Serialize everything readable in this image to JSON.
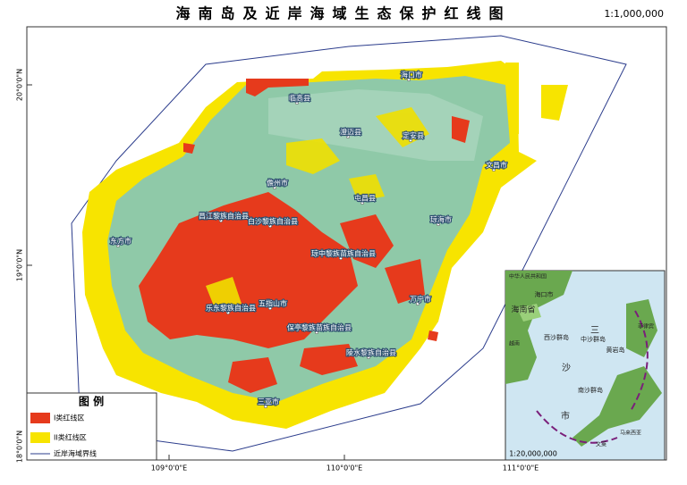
{
  "header": {
    "title": "海南岛及近岸海域生态保护红线图",
    "scale": "1:1,000,000"
  },
  "graticule": {
    "lat": [
      "20°0'0\"N",
      "19°0'0\"N",
      "18°0'0\"N"
    ],
    "lon": [
      "109°0'0\"E",
      "110°0'0\"E",
      "111°0'0\"E"
    ]
  },
  "places": [
    "海口市",
    "临高县",
    "澄迈县",
    "定安县",
    "文昌市",
    "儋州市",
    "屯昌县",
    "昌江黎族自治县",
    "白沙黎族自治县",
    "琼海市",
    "东方市",
    "琼中黎族苗族自治县",
    "乐东黎族自治县",
    "五指山市",
    "万宁市",
    "保亭黎族苗族自治县",
    "陵水黎族自治县",
    "三亚市"
  ],
  "legend": {
    "title": "图 例",
    "items": [
      "I类红线区",
      "II类红线区",
      "近岸海域界线"
    ]
  },
  "inset": {
    "labels": [
      "中华人民共和国",
      "海口市",
      "海南省",
      "三",
      "沙",
      "市",
      "西沙群岛",
      "中沙群岛",
      "黄岩岛",
      "南沙群岛",
      "菲律宾",
      "越南",
      "马来西亚",
      "文莱"
    ],
    "scale": "1:20,000,000"
  }
}
